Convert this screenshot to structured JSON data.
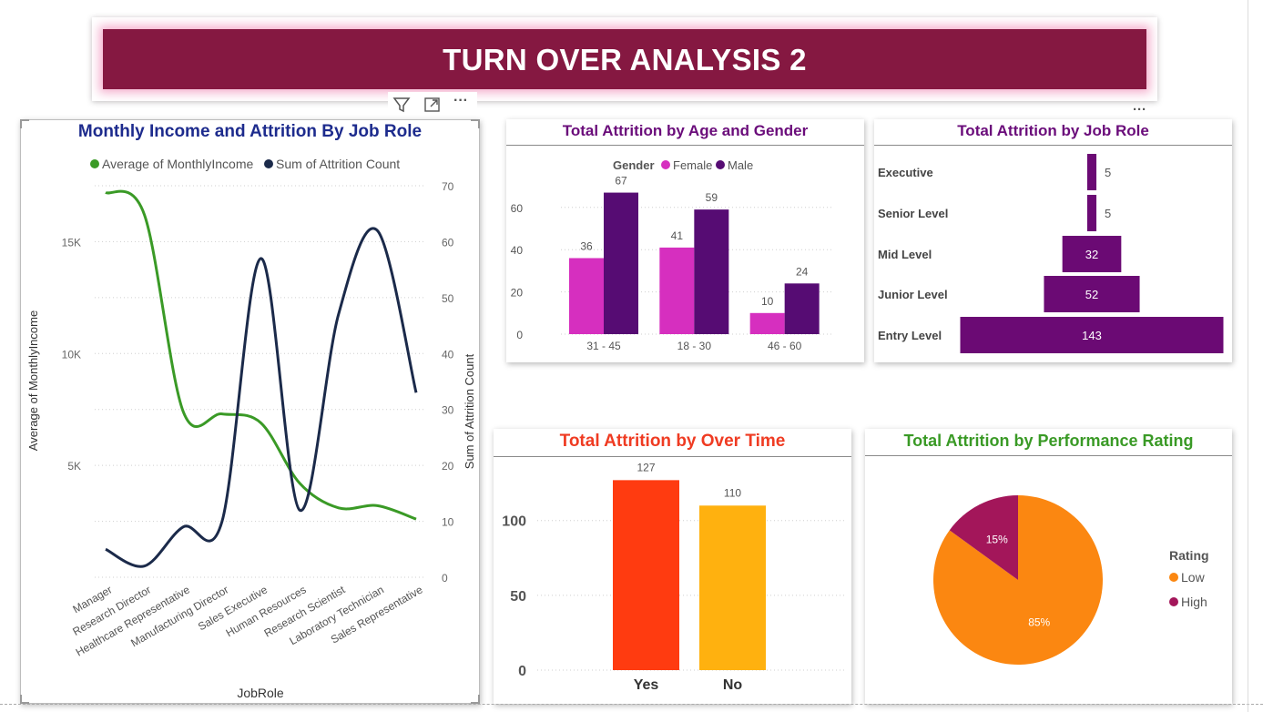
{
  "header": {
    "title": "TURN OVER ANALYSIS 2"
  },
  "toolbar": {
    "filter_icon": "filter-icon",
    "focus_icon": "focus-mode-icon",
    "more_icon": "more-options-icon",
    "more_label": "···"
  },
  "colors": {
    "banner": "#851841",
    "income": "#3a9a26",
    "attrition_line": "#1b2a4a",
    "female": "#d62fbf",
    "male": "#560c73",
    "job_role_bar": "#6b0a74",
    "overtime_yes": "#ff3b10",
    "overtime_no": "#ffb10f",
    "rating_low": "#fb8711",
    "rating_high": "#a3165a"
  },
  "chart_data": [
    {
      "type": "line",
      "title": "Monthly Income and Attrition By Job Role",
      "xlabel": "JobRole",
      "ylabel": "Average of MonthlyIncome",
      "y2label": "Sum of Attrition Count",
      "categories": [
        "Manager",
        "Research Director",
        "Healthcare Representative",
        "Manufacturing Director",
        "Sales Executive",
        "Human Resources",
        "Research Scientist",
        "Laboratory Technician",
        "Sales Representative"
      ],
      "series": [
        {
          "name": "Average of MonthlyIncome",
          "axis": "left",
          "values": [
            17200,
            16200,
            7400,
            7300,
            6900,
            4200,
            3100,
            3200,
            2600
          ]
        },
        {
          "name": "Sum of Attrition Count",
          "axis": "right",
          "values": [
            5,
            2,
            9,
            10,
            57,
            12,
            47,
            62,
            33
          ]
        }
      ],
      "ylim": [
        0,
        17500
      ],
      "y_ticks": [
        "5K",
        "10K",
        "15K"
      ],
      "y_tick_values": [
        5000,
        10000,
        15000
      ],
      "y2lim": [
        0,
        70
      ],
      "y2_ticks": [
        "0",
        "10",
        "20",
        "30",
        "40",
        "50",
        "60",
        "70"
      ],
      "legend_position": "top",
      "grid": true
    },
    {
      "type": "bar",
      "title": "Total Attrition by Age and Gender",
      "legend_title": "Gender",
      "categories": [
        "31 - 45",
        "18 - 30",
        "46 - 60"
      ],
      "series": [
        {
          "name": "Female",
          "values": [
            36,
            41,
            10
          ]
        },
        {
          "name": "Male",
          "values": [
            67,
            59,
            24
          ]
        }
      ],
      "ylim": [
        0,
        75
      ],
      "y_ticks": [
        "0",
        "20",
        "40",
        "60"
      ],
      "legend_position": "top",
      "grid": true
    },
    {
      "type": "bar",
      "orientation": "horizontal-funnel",
      "title": "Total Attrition by Job Role",
      "categories": [
        "Executive",
        "Senior Level",
        "Mid Level",
        "Junior Level",
        "Entry Level"
      ],
      "values": [
        5,
        5,
        32,
        52,
        143
      ]
    },
    {
      "type": "bar",
      "title": "Total Attrition by Over Time",
      "categories": [
        "Yes",
        "No"
      ],
      "values": [
        127,
        110
      ],
      "ylim": [
        0,
        140
      ],
      "y_ticks": [
        "0",
        "50",
        "100"
      ],
      "grid": true
    },
    {
      "type": "pie",
      "title": "Total Attrition by Performance Rating",
      "legend_title": "Rating",
      "categories": [
        "Low",
        "High"
      ],
      "values": [
        85,
        15
      ],
      "labels": [
        "85%",
        "15%"
      ],
      "legend_position": "right"
    }
  ]
}
